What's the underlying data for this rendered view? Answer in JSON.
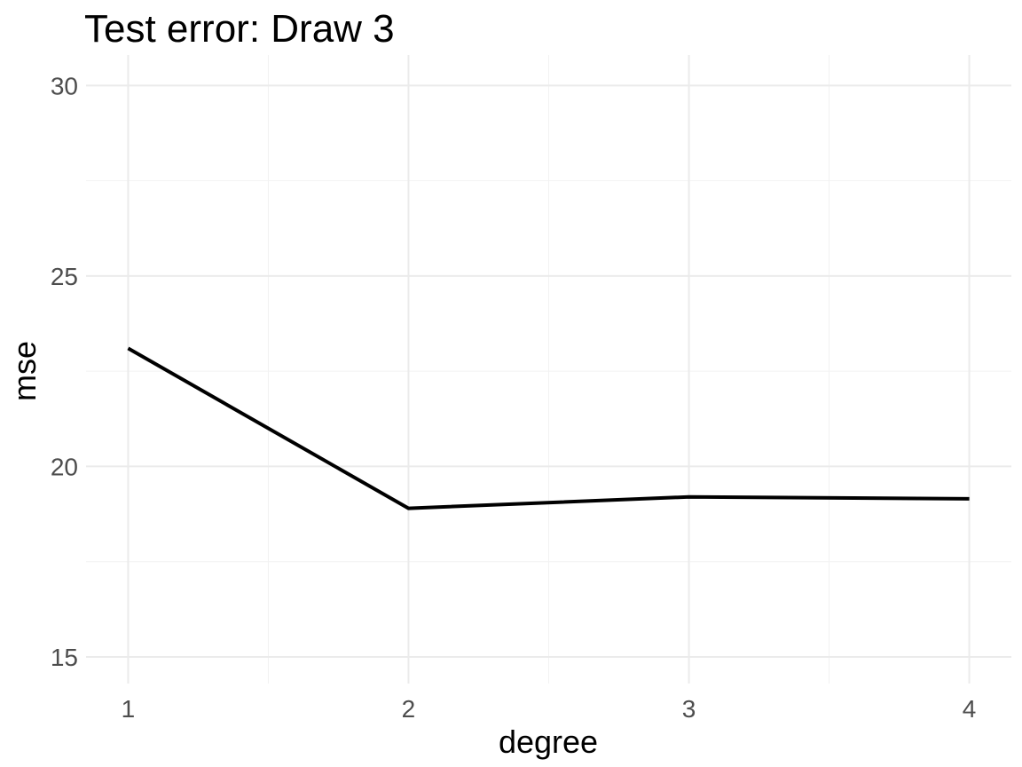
{
  "chart_data": {
    "type": "line",
    "title": "Test error: Draw 3",
    "xlabel": "degree",
    "ylabel": "mse",
    "x": [
      1,
      2,
      3,
      4
    ],
    "series": [
      {
        "values": [
          23.1,
          18.9,
          19.2,
          19.15
        ]
      }
    ],
    "xticks": [
      1,
      2,
      3,
      4
    ],
    "xtick_labels": [
      "1",
      "2",
      "3",
      "4"
    ],
    "yticks": [
      15,
      20,
      25,
      30
    ],
    "ytick_labels": [
      "15",
      "20",
      "25",
      "30"
    ],
    "xlim": [
      0.85,
      4.15
    ],
    "ylim": [
      14.3,
      30.8
    ],
    "grid": true,
    "legend": "none",
    "line_color": "#000000",
    "grid_color": "#ebebeb"
  }
}
